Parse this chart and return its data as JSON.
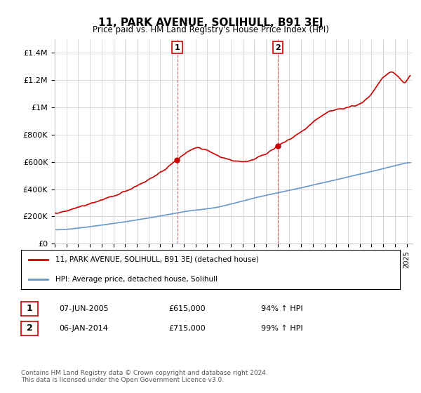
{
  "title": "11, PARK AVENUE, SOLIHULL, B91 3EJ",
  "subtitle": "Price paid vs. HM Land Registry's House Price Index (HPI)",
  "ylabel_ticks": [
    "£0",
    "£200K",
    "£400K",
    "£600K",
    "£800K",
    "£1M",
    "£1.2M",
    "£1.4M"
  ],
  "ytick_values": [
    0,
    200000,
    400000,
    600000,
    800000,
    1000000,
    1200000,
    1400000
  ],
  "ylim": [
    0,
    1500000
  ],
  "xlim_start": 1995.0,
  "xlim_end": 2025.5,
  "red_color": "#cc0000",
  "blue_color": "#6699cc",
  "dashed_red": "#cc2222",
  "marker1_date": 2005.44,
  "marker1_value": 615000,
  "marker1_label": "1",
  "marker2_date": 2014.02,
  "marker2_value": 715000,
  "marker2_label": "2",
  "legend_line1": "11, PARK AVENUE, SOLIHULL, B91 3EJ (detached house)",
  "legend_line2": "HPI: Average price, detached house, Solihull",
  "table_row1": [
    "1",
    "07-JUN-2005",
    "£615,000",
    "94% ↑ HPI"
  ],
  "table_row2": [
    "2",
    "06-JAN-2014",
    "£715,000",
    "99% ↑ HPI"
  ],
  "footer": "Contains HM Land Registry data © Crown copyright and database right 2024.\nThis data is licensed under the Open Government Licence v3.0.",
  "grid_color": "#cccccc",
  "bg_color": "#ffffff"
}
